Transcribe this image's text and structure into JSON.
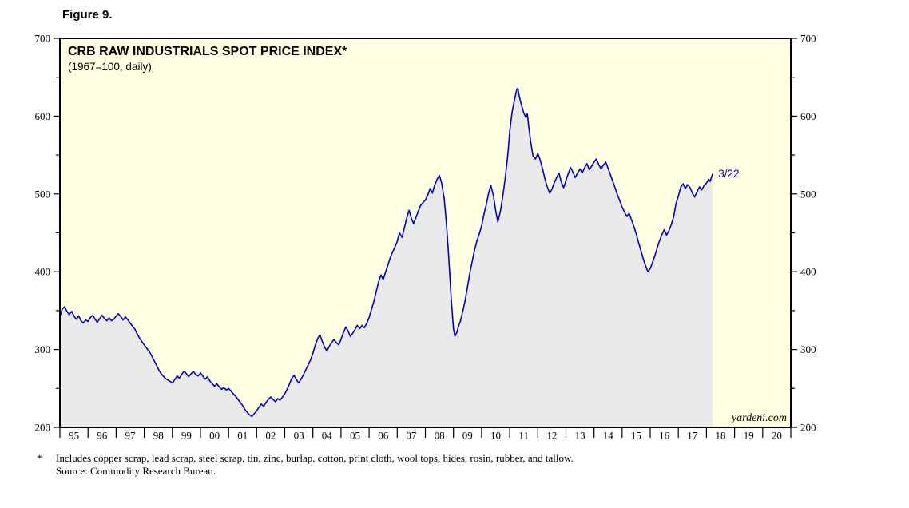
{
  "figure": {
    "label": "Figure 9."
  },
  "chart_data": {
    "type": "line",
    "title": "CRB RAW INDUSTRIALS SPOT PRICE INDEX*",
    "subtitle": "(1967=100, daily)",
    "watermark": "yardeni.com",
    "plot_bg": "#FFFFE1",
    "x_range": [
      1995,
      2021
    ],
    "y_range": [
      200,
      700
    ],
    "y_major_ticks": [
      200,
      300,
      400,
      500,
      600,
      700
    ],
    "y_minor_step": 50,
    "x_year_labels": [
      "95",
      "96",
      "97",
      "98",
      "99",
      "00",
      "01",
      "02",
      "03",
      "04",
      "05",
      "06",
      "07",
      "08",
      "09",
      "10",
      "11",
      "12",
      "13",
      "14",
      "15",
      "16",
      "17",
      "18",
      "19",
      "20"
    ],
    "annotation": {
      "label": "3/22",
      "color": "#0000CD"
    },
    "series": [
      {
        "name": "CRB Raw Industrials Spot Price Index",
        "color": "#0000CD",
        "fill": "#EAEAEA",
        "points": [
          [
            1995.0,
            342
          ],
          [
            1995.08,
            352
          ],
          [
            1995.17,
            355
          ],
          [
            1995.25,
            349
          ],
          [
            1995.33,
            345
          ],
          [
            1995.42,
            349
          ],
          [
            1995.5,
            343
          ],
          [
            1995.58,
            339
          ],
          [
            1995.67,
            343
          ],
          [
            1995.75,
            337
          ],
          [
            1995.83,
            334
          ],
          [
            1995.92,
            338
          ],
          [
            1996.0,
            336
          ],
          [
            1996.08,
            341
          ],
          [
            1996.17,
            344
          ],
          [
            1996.25,
            339
          ],
          [
            1996.33,
            335
          ],
          [
            1996.42,
            340
          ],
          [
            1996.5,
            344
          ],
          [
            1996.58,
            340
          ],
          [
            1996.67,
            337
          ],
          [
            1996.75,
            341
          ],
          [
            1996.83,
            337
          ],
          [
            1996.92,
            339
          ],
          [
            1997.0,
            343
          ],
          [
            1997.08,
            346
          ],
          [
            1997.17,
            342
          ],
          [
            1997.25,
            338
          ],
          [
            1997.33,
            342
          ],
          [
            1997.42,
            338
          ],
          [
            1997.5,
            334
          ],
          [
            1997.58,
            330
          ],
          [
            1997.67,
            326
          ],
          [
            1997.75,
            320
          ],
          [
            1997.83,
            315
          ],
          [
            1997.92,
            310
          ],
          [
            1998.0,
            306
          ],
          [
            1998.08,
            302
          ],
          [
            1998.17,
            298
          ],
          [
            1998.25,
            293
          ],
          [
            1998.33,
            287
          ],
          [
            1998.42,
            281
          ],
          [
            1998.5,
            275
          ],
          [
            1998.58,
            270
          ],
          [
            1998.67,
            266
          ],
          [
            1998.75,
            263
          ],
          [
            1998.83,
            261
          ],
          [
            1998.92,
            259
          ],
          [
            1999.0,
            257
          ],
          [
            1999.08,
            261
          ],
          [
            1999.17,
            266
          ],
          [
            1999.25,
            263
          ],
          [
            1999.33,
            268
          ],
          [
            1999.42,
            272
          ],
          [
            1999.5,
            269
          ],
          [
            1999.58,
            265
          ],
          [
            1999.67,
            269
          ],
          [
            1999.75,
            272
          ],
          [
            1999.83,
            268
          ],
          [
            1999.92,
            266
          ],
          [
            2000.0,
            270
          ],
          [
            2000.08,
            266
          ],
          [
            2000.17,
            262
          ],
          [
            2000.25,
            265
          ],
          [
            2000.33,
            260
          ],
          [
            2000.42,
            256
          ],
          [
            2000.5,
            253
          ],
          [
            2000.58,
            256
          ],
          [
            2000.67,
            252
          ],
          [
            2000.75,
            249
          ],
          [
            2000.83,
            251
          ],
          [
            2000.92,
            248
          ],
          [
            2001.0,
            250
          ],
          [
            2001.08,
            247
          ],
          [
            2001.17,
            243
          ],
          [
            2001.25,
            240
          ],
          [
            2001.33,
            236
          ],
          [
            2001.42,
            232
          ],
          [
            2001.5,
            228
          ],
          [
            2001.58,
            223
          ],
          [
            2001.67,
            219
          ],
          [
            2001.75,
            216
          ],
          [
            2001.83,
            214
          ],
          [
            2001.92,
            218
          ],
          [
            2002.0,
            221
          ],
          [
            2002.08,
            226
          ],
          [
            2002.17,
            230
          ],
          [
            2002.25,
            227
          ],
          [
            2002.33,
            232
          ],
          [
            2002.42,
            236
          ],
          [
            2002.5,
            239
          ],
          [
            2002.58,
            236
          ],
          [
            2002.67,
            233
          ],
          [
            2002.75,
            237
          ],
          [
            2002.83,
            235
          ],
          [
            2002.92,
            239
          ],
          [
            2003.0,
            243
          ],
          [
            2003.08,
            249
          ],
          [
            2003.17,
            256
          ],
          [
            2003.25,
            263
          ],
          [
            2003.33,
            267
          ],
          [
            2003.42,
            261
          ],
          [
            2003.5,
            257
          ],
          [
            2003.58,
            262
          ],
          [
            2003.67,
            268
          ],
          [
            2003.75,
            274
          ],
          [
            2003.83,
            280
          ],
          [
            2003.92,
            287
          ],
          [
            2004.0,
            295
          ],
          [
            2004.08,
            305
          ],
          [
            2004.17,
            314
          ],
          [
            2004.25,
            319
          ],
          [
            2004.33,
            311
          ],
          [
            2004.42,
            303
          ],
          [
            2004.5,
            298
          ],
          [
            2004.58,
            304
          ],
          [
            2004.67,
            309
          ],
          [
            2004.75,
            313
          ],
          [
            2004.83,
            309
          ],
          [
            2004.92,
            306
          ],
          [
            2005.0,
            313
          ],
          [
            2005.08,
            321
          ],
          [
            2005.17,
            329
          ],
          [
            2005.25,
            324
          ],
          [
            2005.33,
            317
          ],
          [
            2005.42,
            321
          ],
          [
            2005.5,
            326
          ],
          [
            2005.58,
            331
          ],
          [
            2005.67,
            327
          ],
          [
            2005.75,
            331
          ],
          [
            2005.83,
            328
          ],
          [
            2005.92,
            334
          ],
          [
            2006.0,
            341
          ],
          [
            2006.08,
            351
          ],
          [
            2006.17,
            362
          ],
          [
            2006.25,
            374
          ],
          [
            2006.33,
            386
          ],
          [
            2006.42,
            396
          ],
          [
            2006.5,
            390
          ],
          [
            2006.58,
            399
          ],
          [
            2006.67,
            409
          ],
          [
            2006.75,
            418
          ],
          [
            2006.83,
            425
          ],
          [
            2006.92,
            432
          ],
          [
            2007.0,
            439
          ],
          [
            2007.08,
            450
          ],
          [
            2007.17,
            444
          ],
          [
            2007.25,
            456
          ],
          [
            2007.33,
            468
          ],
          [
            2007.42,
            479
          ],
          [
            2007.5,
            469
          ],
          [
            2007.58,
            462
          ],
          [
            2007.67,
            470
          ],
          [
            2007.75,
            478
          ],
          [
            2007.83,
            485
          ],
          [
            2007.92,
            489
          ],
          [
            2008.0,
            492
          ],
          [
            2008.08,
            498
          ],
          [
            2008.17,
            507
          ],
          [
            2008.25,
            501
          ],
          [
            2008.33,
            511
          ],
          [
            2008.42,
            519
          ],
          [
            2008.5,
            524
          ],
          [
            2008.58,
            514
          ],
          [
            2008.67,
            494
          ],
          [
            2008.75,
            462
          ],
          [
            2008.83,
            420
          ],
          [
            2008.92,
            365
          ],
          [
            2009.0,
            327
          ],
          [
            2009.05,
            317
          ],
          [
            2009.12,
            322
          ],
          [
            2009.17,
            329
          ],
          [
            2009.25,
            337
          ],
          [
            2009.33,
            349
          ],
          [
            2009.42,
            364
          ],
          [
            2009.5,
            381
          ],
          [
            2009.58,
            398
          ],
          [
            2009.67,
            414
          ],
          [
            2009.75,
            428
          ],
          [
            2009.83,
            439
          ],
          [
            2009.92,
            449
          ],
          [
            2010.0,
            459
          ],
          [
            2010.08,
            473
          ],
          [
            2010.17,
            487
          ],
          [
            2010.25,
            501
          ],
          [
            2010.33,
            511
          ],
          [
            2010.42,
            498
          ],
          [
            2010.5,
            479
          ],
          [
            2010.58,
            464
          ],
          [
            2010.67,
            478
          ],
          [
            2010.75,
            496
          ],
          [
            2010.83,
            517
          ],
          [
            2010.92,
            546
          ],
          [
            2010.96,
            562
          ],
          [
            2011.0,
            580
          ],
          [
            2011.08,
            604
          ],
          [
            2011.17,
            621
          ],
          [
            2011.25,
            634
          ],
          [
            2011.29,
            636
          ],
          [
            2011.33,
            627
          ],
          [
            2011.42,
            614
          ],
          [
            2011.5,
            604
          ],
          [
            2011.58,
            598
          ],
          [
            2011.63,
            603
          ],
          [
            2011.67,
            589
          ],
          [
            2011.75,
            566
          ],
          [
            2011.83,
            549
          ],
          [
            2011.92,
            545
          ],
          [
            2012.0,
            552
          ],
          [
            2012.08,
            544
          ],
          [
            2012.17,
            532
          ],
          [
            2012.25,
            520
          ],
          [
            2012.33,
            510
          ],
          [
            2012.42,
            501
          ],
          [
            2012.5,
            506
          ],
          [
            2012.58,
            514
          ],
          [
            2012.67,
            521
          ],
          [
            2012.75,
            527
          ],
          [
            2012.83,
            516
          ],
          [
            2012.92,
            508
          ],
          [
            2013.0,
            517
          ],
          [
            2013.08,
            526
          ],
          [
            2013.17,
            534
          ],
          [
            2013.25,
            528
          ],
          [
            2013.33,
            521
          ],
          [
            2013.42,
            527
          ],
          [
            2013.5,
            532
          ],
          [
            2013.58,
            527
          ],
          [
            2013.67,
            534
          ],
          [
            2013.75,
            539
          ],
          [
            2013.83,
            531
          ],
          [
            2013.92,
            536
          ],
          [
            2014.0,
            541
          ],
          [
            2014.08,
            545
          ],
          [
            2014.17,
            538
          ],
          [
            2014.25,
            532
          ],
          [
            2014.33,
            537
          ],
          [
            2014.42,
            541
          ],
          [
            2014.5,
            533
          ],
          [
            2014.58,
            525
          ],
          [
            2014.67,
            516
          ],
          [
            2014.75,
            508
          ],
          [
            2014.83,
            499
          ],
          [
            2014.92,
            491
          ],
          [
            2015.0,
            483
          ],
          [
            2015.08,
            477
          ],
          [
            2015.17,
            471
          ],
          [
            2015.25,
            475
          ],
          [
            2015.33,
            467
          ],
          [
            2015.42,
            458
          ],
          [
            2015.5,
            449
          ],
          [
            2015.58,
            438
          ],
          [
            2015.67,
            427
          ],
          [
            2015.75,
            417
          ],
          [
            2015.83,
            408
          ],
          [
            2015.92,
            400
          ],
          [
            2016.0,
            404
          ],
          [
            2016.08,
            412
          ],
          [
            2016.17,
            421
          ],
          [
            2016.25,
            431
          ],
          [
            2016.33,
            440
          ],
          [
            2016.42,
            448
          ],
          [
            2016.5,
            454
          ],
          [
            2016.58,
            447
          ],
          [
            2016.67,
            453
          ],
          [
            2016.75,
            461
          ],
          [
            2016.83,
            470
          ],
          [
            2016.92,
            488
          ],
          [
            2017.0,
            497
          ],
          [
            2017.08,
            508
          ],
          [
            2017.17,
            513
          ],
          [
            2017.25,
            507
          ],
          [
            2017.33,
            512
          ],
          [
            2017.42,
            508
          ],
          [
            2017.5,
            501
          ],
          [
            2017.58,
            496
          ],
          [
            2017.67,
            503
          ],
          [
            2017.75,
            509
          ],
          [
            2017.83,
            505
          ],
          [
            2017.92,
            511
          ],
          [
            2018.0,
            514
          ],
          [
            2018.08,
            519
          ],
          [
            2018.13,
            516
          ],
          [
            2018.18,
            522
          ],
          [
            2018.22,
            526
          ]
        ]
      }
    ]
  },
  "footnote": {
    "marker": "*",
    "line1": "Includes copper scrap, lead scrap, steel scrap, tin, zinc, burlap, cotton, print cloth, wool tops, hides, rosin, rubber, and tallow.",
    "line2": "Source: Commodity Research Bureau."
  }
}
